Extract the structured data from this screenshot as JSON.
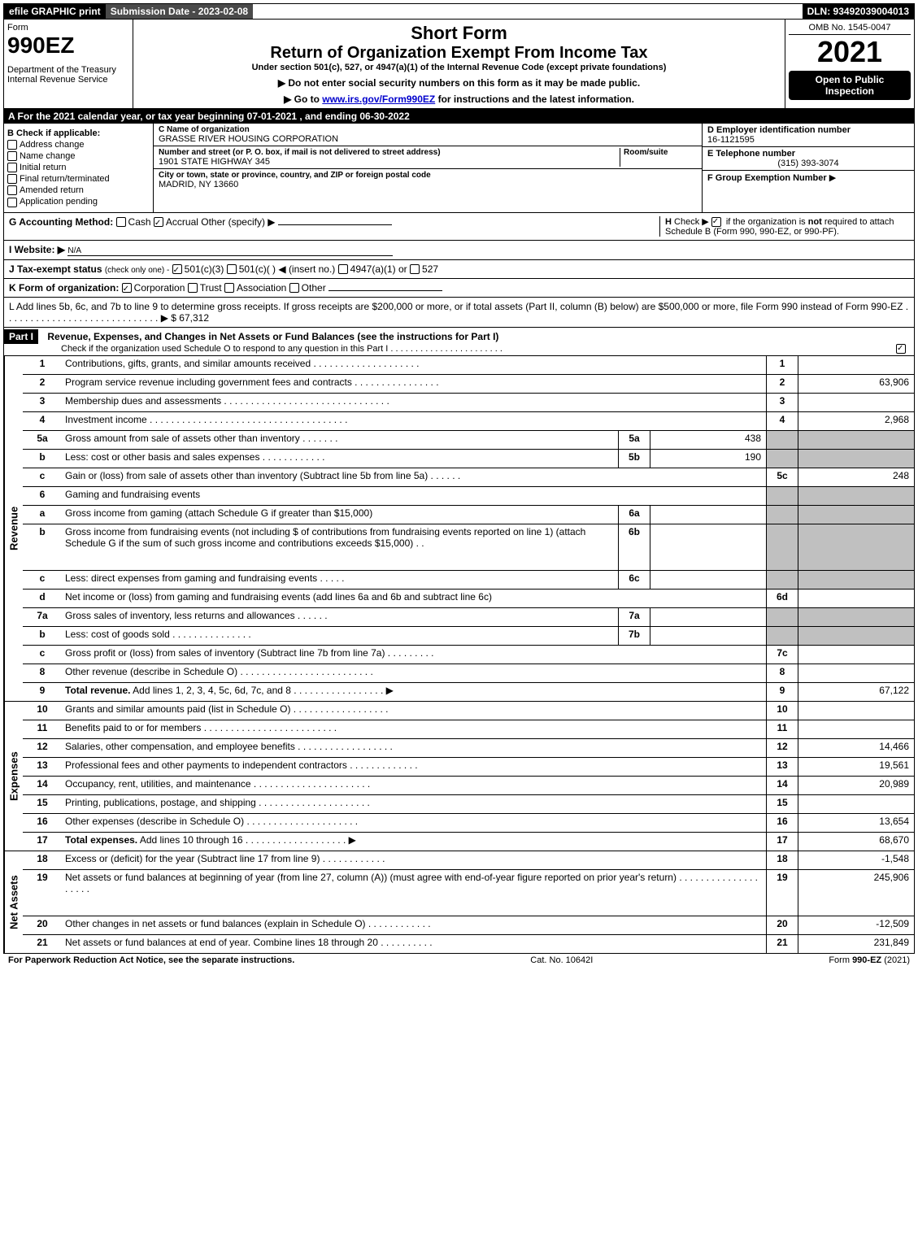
{
  "top": {
    "efile": "efile GRAPHIC print",
    "submission": "Submission Date - 2023-02-08",
    "dln": "DLN: 93492039004013"
  },
  "header": {
    "form_label": "Form",
    "form_num": "990EZ",
    "dept": "Department of the Treasury\nInternal Revenue Service",
    "short": "Short Form",
    "title": "Return of Organization Exempt From Income Tax",
    "under": "Under section 501(c), 527, or 4947(a)(1) of the Internal Revenue Code (except private foundations)",
    "note1": "▶ Do not enter social security numbers on this form as it may be made public.",
    "note2_pre": "▶ Go to ",
    "note2_link": "www.irs.gov/Form990EZ",
    "note2_post": " for instructions and the latest information.",
    "omb": "OMB No. 1545-0047",
    "year": "2021",
    "open": "Open to Public Inspection"
  },
  "line_a": "A  For the 2021 calendar year, or tax year beginning 07-01-2021 , and ending 06-30-2022",
  "b": {
    "label": "B  Check if applicable:",
    "addr": "Address change",
    "name": "Name change",
    "init": "Initial return",
    "final": "Final return/terminated",
    "amend": "Amended return",
    "app": "Application pending"
  },
  "c": {
    "name_lbl": "C Name of organization",
    "name": "GRASSE RIVER HOUSING CORPORATION",
    "street_lbl": "Number and street (or P. O. box, if mail is not delivered to street address)",
    "room_lbl": "Room/suite",
    "street": "1901 STATE HIGHWAY 345",
    "city_lbl": "City or town, state or province, country, and ZIP or foreign postal code",
    "city": "MADRID, NY  13660"
  },
  "right": {
    "d_lbl": "D Employer identification number",
    "d_val": "16-1121595",
    "e_lbl": "E Telephone number",
    "e_val": "(315) 393-3074",
    "f_lbl": "F Group Exemption Number",
    "f_arrow": "▶"
  },
  "g": {
    "label": "G Accounting Method:",
    "cash": "Cash",
    "accrual": "Accrual",
    "other": "Other (specify) ▶"
  },
  "h": {
    "text": "H  Check ▶ ☑ if the organization is not required to attach Schedule B (Form 990, 990-EZ, or 990-PF)."
  },
  "i": {
    "label": "I Website: ▶",
    "val": "N/A"
  },
  "j": {
    "label": "J Tax-exempt status",
    "sub": "(check only one) -",
    "opt1": "501(c)(3)",
    "opt2": "501(c)(  ) ◀ (insert no.)",
    "opt3": "4947(a)(1) or",
    "opt4": "527"
  },
  "k": {
    "label": "K Form of organization:",
    "corp": "Corporation",
    "trust": "Trust",
    "assoc": "Association",
    "other": "Other"
  },
  "l": {
    "text": "L Add lines 5b, 6c, and 7b to line 9 to determine gross receipts. If gross receipts are $200,000 or more, or if total assets (Part II, column (B) below) are $500,000 or more, file Form 990 instead of Form 990-EZ  .  .  .  .  .  .  .  .  .  .  .  .  .  .  .  .  .  .  .  .  .  .  .  .  .  .  .  .  . ▶ $",
    "val": "67,312"
  },
  "part1": {
    "label": "Part I",
    "title": "Revenue, Expenses, and Changes in Net Assets or Fund Balances (see the instructions for Part I)",
    "sub": "Check if the organization used Schedule O to respond to any question in this Part I  .  .  .  .  .  .  .  .  .  .  .  .  .  .  .  .  .  .  .  .  .  .  ."
  },
  "vtabs": {
    "rev": "Revenue",
    "exp": "Expenses",
    "net": "Net Assets"
  },
  "revenue": [
    {
      "n": "1",
      "d": "Contributions, gifts, grants, and similar amounts received  .  .  .  .  .  .  .  .  .  .  .  .  .  .  .  .  .  .  .  .",
      "b": "1",
      "v": ""
    },
    {
      "n": "2",
      "d": "Program service revenue including government fees and contracts  .  .  .  .  .  .  .  .  .  .  .  .  .  .  .  .",
      "b": "2",
      "v": "63,906"
    },
    {
      "n": "3",
      "d": "Membership dues and assessments  .  .  .  .  .  .  .  .  .  .  .  .  .  .  .  .  .  .  .  .  .  .  .  .  .  .  .  .  .  .  .",
      "b": "3",
      "v": ""
    },
    {
      "n": "4",
      "d": "Investment income  .  .  .  .  .  .  .  .  .  .  .  .  .  .  .  .  .  .  .  .  .  .  .  .  .  .  .  .  .  .  .  .  .  .  .  .  .",
      "b": "4",
      "v": "2,968"
    },
    {
      "n": "5a",
      "d": "Gross amount from sale of assets other than inventory  .  .  .  .  .  .  .",
      "sb": "5a",
      "sv": "438",
      "shade": true
    },
    {
      "n": "b",
      "d": "Less: cost or other basis and sales expenses  .  .  .  .  .  .  .  .  .  .  .  .",
      "sb": "5b",
      "sv": "190",
      "shade": true
    },
    {
      "n": "c",
      "d": "Gain or (loss) from sale of assets other than inventory (Subtract line 5b from line 5a)  .  .  .  .  .  .",
      "b": "5c",
      "v": "248"
    },
    {
      "n": "6",
      "d": "Gaming and fundraising events",
      "shade": true,
      "noboxes": true
    },
    {
      "n": "a",
      "d": "Gross income from gaming (attach Schedule G if greater than $15,000)",
      "sb": "6a",
      "sv": "",
      "shade": true
    },
    {
      "n": "b",
      "d": "Gross income from fundraising events (not including $                    of contributions from fundraising events reported on line 1) (attach Schedule G if the sum of such gross income and contributions exceeds $15,000)    .  .",
      "sb": "6b",
      "sv": "",
      "shade": true,
      "tall": true
    },
    {
      "n": "c",
      "d": "Less: direct expenses from gaming and fundraising events  .  .  .  .  .",
      "sb": "6c",
      "sv": "",
      "shade": true
    },
    {
      "n": "d",
      "d": "Net income or (loss) from gaming and fundraising events (add lines 6a and 6b and subtract line 6c)",
      "b": "6d",
      "v": ""
    },
    {
      "n": "7a",
      "d": "Gross sales of inventory, less returns and allowances  .  .  .  .  .  .",
      "sb": "7a",
      "sv": "",
      "shade": true
    },
    {
      "n": "b",
      "d": "Less: cost of goods sold     .  .  .  .  .  .  .  .  .  .  .  .  .  .  .",
      "sb": "7b",
      "sv": "",
      "shade": true
    },
    {
      "n": "c",
      "d": "Gross profit or (loss) from sales of inventory (Subtract line 7b from line 7a)  .  .  .  .  .  .  .  .  .",
      "b": "7c",
      "v": ""
    },
    {
      "n": "8",
      "d": "Other revenue (describe in Schedule O)  .  .  .  .  .  .  .  .  .  .  .  .  .  .  .  .  .  .  .  .  .  .  .  .  .",
      "b": "8",
      "v": ""
    },
    {
      "n": "9",
      "d": "Total revenue. Add lines 1, 2, 3, 4, 5c, 6d, 7c, and 8   .  .  .  .  .  .  .  .  .  .  .  .  .  .  .  .  .  ▶",
      "b": "9",
      "v": "67,122",
      "bold": true
    }
  ],
  "expenses": [
    {
      "n": "10",
      "d": "Grants and similar amounts paid (list in Schedule O)  .  .  .  .  .  .  .  .  .  .  .  .  .  .  .  .  .  .",
      "b": "10",
      "v": ""
    },
    {
      "n": "11",
      "d": "Benefits paid to or for members     .  .  .  .  .  .  .  .  .  .  .  .  .  .  .  .  .  .  .  .  .  .  .  .  .",
      "b": "11",
      "v": ""
    },
    {
      "n": "12",
      "d": "Salaries, other compensation, and employee benefits  .  .  .  .  .  .  .  .  .  .  .  .  .  .  .  .  .  .",
      "b": "12",
      "v": "14,466"
    },
    {
      "n": "13",
      "d": "Professional fees and other payments to independent contractors  .  .  .  .  .  .  .  .  .  .  .  .  .",
      "b": "13",
      "v": "19,561"
    },
    {
      "n": "14",
      "d": "Occupancy, rent, utilities, and maintenance .  .  .  .  .  .  .  .  .  .  .  .  .  .  .  .  .  .  .  .  .  .",
      "b": "14",
      "v": "20,989"
    },
    {
      "n": "15",
      "d": "Printing, publications, postage, and shipping .  .  .  .  .  .  .  .  .  .  .  .  .  .  .  .  .  .  .  .  .",
      "b": "15",
      "v": ""
    },
    {
      "n": "16",
      "d": "Other expenses (describe in Schedule O)    .  .  .  .  .  .  .  .  .  .  .  .  .  .  .  .  .  .  .  .  .",
      "b": "16",
      "v": "13,654"
    },
    {
      "n": "17",
      "d": "Total expenses. Add lines 10 through 16     .  .  .  .  .  .  .  .  .  .  .  .  .  .  .  .  .  .  .  ▶",
      "b": "17",
      "v": "68,670",
      "bold": true
    }
  ],
  "netassets": [
    {
      "n": "18",
      "d": "Excess or (deficit) for the year (Subtract line 17 from line 9)      .  .  .  .  .  .  .  .  .  .  .  .",
      "b": "18",
      "v": "-1,548"
    },
    {
      "n": "19",
      "d": "Net assets or fund balances at beginning of year (from line 27, column (A)) (must agree with end-of-year figure reported on prior year's return) .  .  .  .  .  .  .  .  .  .  .  .  .  .  .  .  .  .  .  .",
      "b": "19",
      "v": "245,906",
      "tall": true
    },
    {
      "n": "20",
      "d": "Other changes in net assets or fund balances (explain in Schedule O) .  .  .  .  .  .  .  .  .  .  .  .",
      "b": "20",
      "v": "-12,509"
    },
    {
      "n": "21",
      "d": "Net assets or fund balances at end of year. Combine lines 18 through 20  .  .  .  .  .  .  .  .  .  .",
      "b": "21",
      "v": "231,849"
    }
  ],
  "footer": {
    "left": "For Paperwork Reduction Act Notice, see the separate instructions.",
    "cat": "Cat. No. 10642I",
    "right_pre": "Form ",
    "right_bold": "990-EZ",
    "right_post": " (2021)"
  }
}
